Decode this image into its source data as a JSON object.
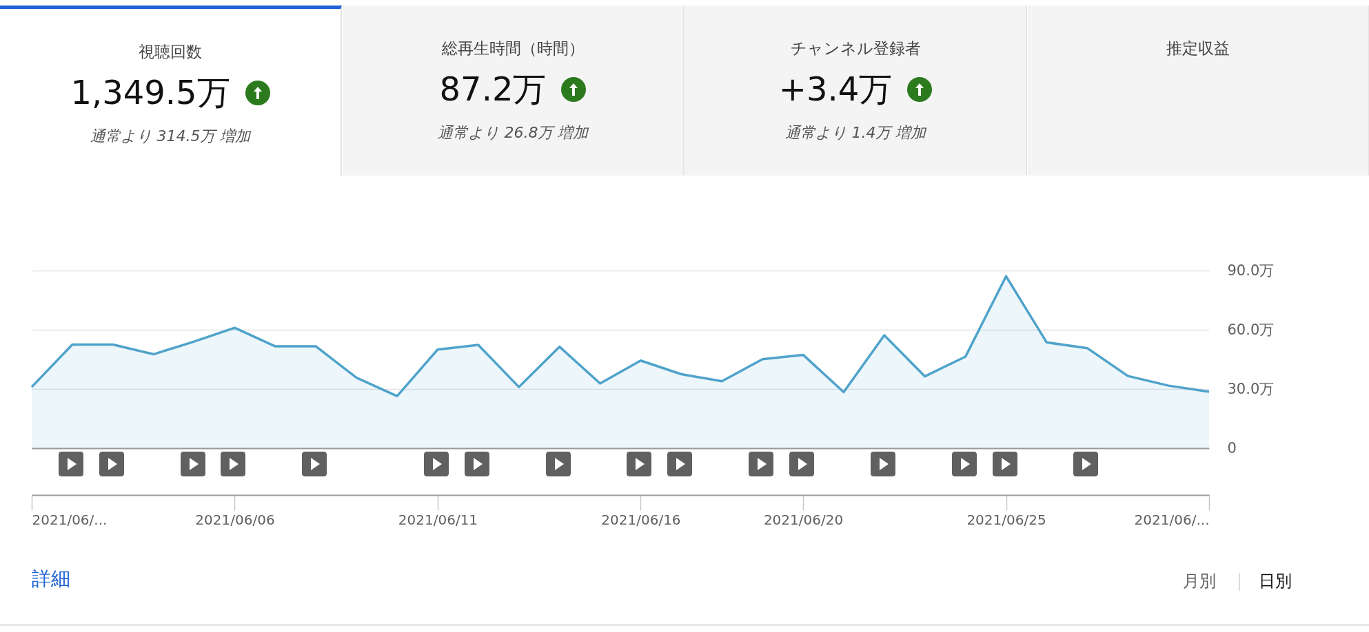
{
  "chart_data": [
    {
      "type": "other",
      "title": "視聴回数",
      "subtitle": "1,349.5万",
      "annotations": [
        "通常より 314.5万 増加"
      ]
    },
    {
      "type": "other",
      "title": "総再生時間（時間）",
      "subtitle": "87.2万",
      "annotations": [
        "通常より 26.8万 増加"
      ]
    },
    {
      "type": "other",
      "title": "チャンネル登録者",
      "subtitle": "+3.4万",
      "annotations": [
        "通常より 1.4万 増加"
      ]
    },
    {
      "type": "other",
      "title": "推定収益"
    },
    {
      "type": "area",
      "x": [
        "2021-06-01",
        "2021-06-02",
        "2021-06-03",
        "2021-06-04",
        "2021-06-05",
        "2021-06-06",
        "2021-06-07",
        "2021-06-08",
        "2021-06-09",
        "2021-06-10",
        "2021-06-11",
        "2021-06-12",
        "2021-06-13",
        "2021-06-14",
        "2021-06-15",
        "2021-06-16",
        "2021-06-17",
        "2021-06-18",
        "2021-06-19",
        "2021-06-20",
        "2021-06-21",
        "2021-06-22",
        "2021-06-23",
        "2021-06-24",
        "2021-06-25",
        "2021-06-26",
        "2021-06-27",
        "2021-06-28",
        "2021-06-29",
        "2021-06-30"
      ],
      "series": [
        {
          "color": "#4fa3cb",
          "values": [
            31,
            52.5,
            52.5,
            47.6,
            54,
            61,
            51.6,
            51.6,
            35.7,
            26.4,
            50,
            52.3,
            31,
            51.4,
            32.8,
            44.4,
            37.5,
            33.9,
            45.1,
            47.3,
            28.4,
            57.2,
            36.4,
            46.4,
            87.1,
            53.6,
            50.7,
            36.6,
            31.7,
            28.6
          ]
        }
      ],
      "xlim": [
        "2021-06-01",
        "2021-06-30"
      ],
      "xticks": [
        {
          "value": "2021-06-01",
          "label": "2021/06/..."
        },
        {
          "value": "2021-06-06",
          "label": "2021/06/06"
        },
        {
          "value": "2021-06-11",
          "label": "2021/06/11"
        },
        {
          "value": "2021-06-16",
          "label": "2021/06/16"
        },
        {
          "value": "2021-06-20",
          "label": "2021/06/20"
        },
        {
          "value": "2021-06-25",
          "label": "2021/06/25"
        },
        {
          "value": "2021-06-30",
          "label": "2021/06/..."
        }
      ],
      "ylim": [
        0,
        90
      ],
      "yticks": [
        0,
        {
          "value": 30,
          "label": "30.0万"
        },
        {
          "value": 60,
          "label": "60.0万"
        },
        {
          "value": 90,
          "label": "90.0万"
        }
      ],
      "grid": "y",
      "annotations": [
        "詳細",
        "月別",
        "日別"
      ]
    }
  ]
}
